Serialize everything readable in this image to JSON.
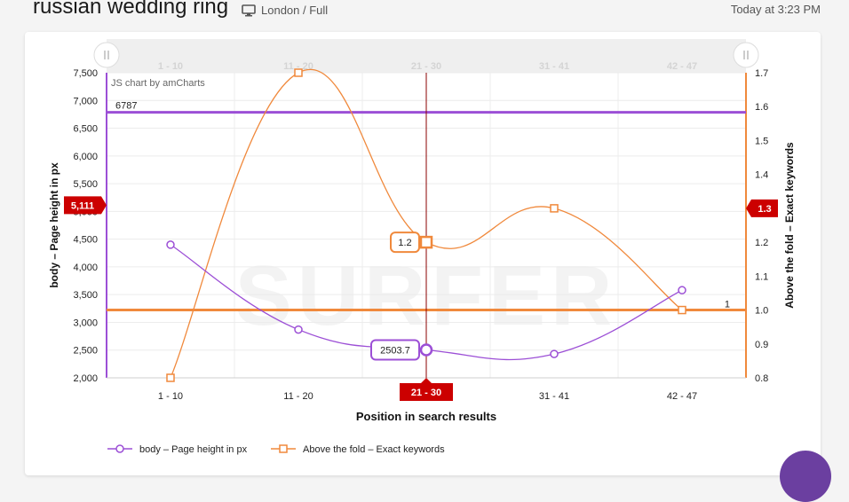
{
  "header": {
    "title": "russian wedding ring",
    "device_label": "London / Full",
    "timestamp": "Today at 3:23 PM"
  },
  "watermark": "SURFER",
  "credit": "JS chart by amCharts",
  "colors": {
    "series1": "#9c4fd6",
    "series2": "#f0893c",
    "marker": "#cc0000",
    "cursor_line": "#8b0000"
  },
  "chart_data": {
    "type": "line",
    "categories": [
      "1 - 10",
      "11 - 20",
      "21 - 30",
      "31 - 41",
      "42 - 47"
    ],
    "scrollbar_labels": [
      "1 - 10",
      "11 - 20",
      "21 - 30",
      "31 - 41",
      "42 - 47"
    ],
    "xlabel": "Position in search results",
    "ylabel_left": "body – Page height in px",
    "ylabel_right": "Above the fold – Exact keywords",
    "ylim_left": [
      2000,
      7500
    ],
    "ylim_right": [
      0.8,
      1.7
    ],
    "yticks_left": [
      "2,000",
      "2,500",
      "3,000",
      "3,500",
      "4,000",
      "4,500",
      "5,000",
      "5,500",
      "6,000",
      "6,500",
      "7,000",
      "7,500"
    ],
    "yticks_right": [
      "0.8",
      "0.9",
      "1.0",
      "1.1",
      "1.2",
      "1.3",
      "1.4",
      "1.5",
      "1.6",
      "1.7"
    ],
    "series": [
      {
        "name": "body – Page height in px",
        "axis": "left",
        "values": [
          4400,
          2870,
          2503.7,
          2430,
          3580
        ]
      },
      {
        "name": "Above the fold – Exact keywords",
        "axis": "right",
        "values": [
          0.8,
          1.7,
          1.2,
          1.3,
          1.0
        ]
      }
    ],
    "guides": [
      {
        "axis": "left",
        "value": 6787,
        "label": "6787"
      },
      {
        "axis": "right",
        "value": 1.0,
        "label": "1"
      }
    ],
    "cursor": {
      "category": "21 - 30",
      "left_value": "5,111",
      "right_value": "1.3",
      "balloon1": "2503.7",
      "balloon2": "1.2"
    },
    "legend": "bottom-left",
    "grid": true
  }
}
